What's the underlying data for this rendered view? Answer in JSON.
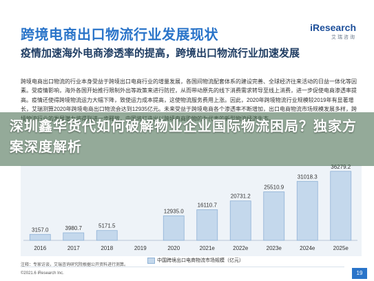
{
  "header": {
    "title": "跨境电商出口物流行业发展现状",
    "logo_text": "iResearch",
    "logo_sub": "艾瑞咨询"
  },
  "subtitle": "疫情加速海外电商渗透率的提高，跨境出口物流行业加速发展",
  "body_text": "跨境电商出口物流的行业本身受益于跨境出口电商行业的增量发展，各国间物流配套体系的建设完善、全球经济往来活动的日益一体化等因素。受疫情影响，海外各国开始推行限制外出等政策来进行防控，从而带动原先的线下消费需求转导至线上消费，进一步促使电商渗透率提高。疫情还使得跨境物流运力大幅下降，致使运力成本提高，这使物流服务费用上涨。因此，2020年跨境物流行业规模较2019年有显著增长，艾瑞测算2020年跨境电商出口物流会达到12935亿元。未来受益于跨境电商各个渗透率不断增加，出口电商物流市场规模发展多样，跨境物流行业的发展潜力将得到进一步释放，中国将打造出以跨境电商购物的为代表的新型物流经济生态。",
  "overlay_title": "深圳鑫华货代如何破解物业企业国际物流困局？独家方案深度解析",
  "legend_label": "中国跨境出口电商物流市场规模（亿元）",
  "footer": {
    "note": "注释：专家访谈，艾瑞咨询研究院根据公开资料进行测算。",
    "copyright": "©2021.6 iResearch Inc.",
    "page_number": "19"
  },
  "colors": {
    "title_blue": "#2a74c9",
    "bar_fill": "#c4d8ec",
    "bar_stroke": "#8fb2d6",
    "overlay_green": "#3c6446"
  },
  "chart_data": {
    "type": "bar",
    "categories": [
      "2016",
      "2017",
      "2018",
      "2019",
      "2020",
      "2021e",
      "2022e",
      "2023e",
      "2024e",
      "2025e"
    ],
    "series": [
      {
        "name": "中国跨境出口电商物流市场规模（亿元）",
        "values": [
          3157.0,
          3980.7,
          5171.5,
          null,
          12935.0,
          16110.7,
          20731.2,
          25510.9,
          31018.3,
          36279.2
        ]
      }
    ],
    "value_labels": [
      "3157.0",
      "3980.7",
      "5171.5",
      "",
      "12935.0",
      "16110.7",
      "20731.2",
      "25510.9",
      "31018.3",
      "36279.2"
    ],
    "ylim": [
      0,
      38000
    ],
    "legend_position": "bottom"
  }
}
